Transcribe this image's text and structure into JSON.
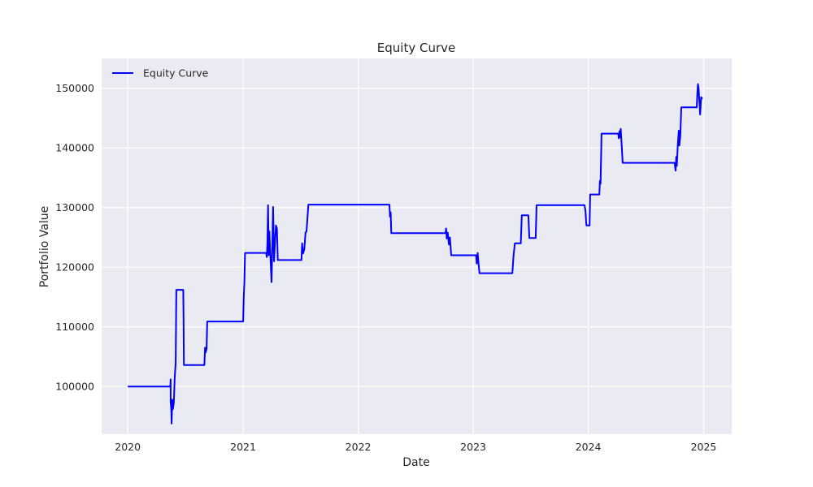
{
  "chart_data": {
    "type": "line",
    "title": "Equity Curve",
    "xlabel": "Date",
    "ylabel": "Portfolio Value",
    "x_type": "date",
    "xlim": [
      "2019-10-10",
      "2025-03-31"
    ],
    "ylim": [
      92000,
      155000
    ],
    "x_ticks": [
      "2020",
      "2021",
      "2022",
      "2023",
      "2024",
      "2025"
    ],
    "y_ticks": [
      100000,
      110000,
      120000,
      130000,
      140000,
      150000
    ],
    "y_tick_labels": [
      "100000",
      "110000",
      "120000",
      "130000",
      "140000",
      "150000"
    ],
    "grid": true,
    "background": "#EAEAF2",
    "legend_position": "top-left",
    "series": [
      {
        "name": "Equity Curve",
        "color": "#0000FF",
        "points": [
          [
            "2020-01-01",
            100000
          ],
          [
            "2020-05-15",
            100000
          ],
          [
            "2020-05-16",
            101200
          ],
          [
            "2020-05-16",
            97500
          ],
          [
            "2020-05-18",
            96000
          ],
          [
            "2020-05-19",
            93800
          ],
          [
            "2020-05-21",
            97800
          ],
          [
            "2020-05-23",
            96200
          ],
          [
            "2020-05-26",
            97200
          ],
          [
            "2020-05-29",
            101500
          ],
          [
            "2020-06-01",
            104000
          ],
          [
            "2020-06-03",
            116200
          ],
          [
            "2020-06-25",
            116200
          ],
          [
            "2020-06-26",
            111000
          ],
          [
            "2020-06-27",
            103600
          ],
          [
            "2020-08-31",
            103600
          ],
          [
            "2020-09-02",
            106500
          ],
          [
            "2020-09-04",
            105700
          ],
          [
            "2020-09-07",
            106300
          ],
          [
            "2020-09-09",
            110900
          ],
          [
            "2021-01-01",
            110900
          ],
          [
            "2021-01-03",
            115000
          ],
          [
            "2021-01-05",
            117500
          ],
          [
            "2021-01-07",
            122400
          ],
          [
            "2021-03-15",
            122400
          ],
          [
            "2021-03-17",
            121700
          ],
          [
            "2021-03-19",
            124000
          ],
          [
            "2021-03-21",
            130400
          ],
          [
            "2021-03-23",
            122000
          ],
          [
            "2021-03-25",
            126000
          ],
          [
            "2021-03-28",
            122500
          ],
          [
            "2021-04-01",
            117500
          ],
          [
            "2021-04-04",
            124500
          ],
          [
            "2021-04-06",
            130100
          ],
          [
            "2021-04-09",
            121000
          ],
          [
            "2021-04-12",
            124000
          ],
          [
            "2021-04-15",
            127000
          ],
          [
            "2021-04-18",
            126500
          ],
          [
            "2021-04-21",
            121200
          ],
          [
            "2021-07-05",
            121200
          ],
          [
            "2021-07-07",
            124000
          ],
          [
            "2021-07-10",
            122300
          ],
          [
            "2021-07-14",
            123000
          ],
          [
            "2021-07-18",
            125800
          ],
          [
            "2021-07-21",
            126000
          ],
          [
            "2021-07-24",
            128300
          ],
          [
            "2021-07-27",
            130500
          ],
          [
            "2022-04-10",
            130500
          ],
          [
            "2022-04-12",
            128500
          ],
          [
            "2022-04-14",
            129200
          ],
          [
            "2022-04-16",
            125700
          ],
          [
            "2022-10-05",
            125700
          ],
          [
            "2022-10-07",
            126500
          ],
          [
            "2022-10-09",
            124800
          ],
          [
            "2022-10-12",
            125800
          ],
          [
            "2022-10-16",
            123800
          ],
          [
            "2022-10-19",
            125000
          ],
          [
            "2022-10-23",
            122000
          ],
          [
            "2023-01-10",
            122000
          ],
          [
            "2023-01-12",
            120600
          ],
          [
            "2023-01-15",
            122400
          ],
          [
            "2023-01-18",
            120500
          ],
          [
            "2023-01-21",
            119000
          ],
          [
            "2023-05-05",
            119000
          ],
          [
            "2023-05-09",
            122000
          ],
          [
            "2023-05-13",
            124000
          ],
          [
            "2023-06-01",
            124000
          ],
          [
            "2023-06-04",
            128700
          ],
          [
            "2023-06-25",
            128700
          ],
          [
            "2023-06-28",
            124900
          ],
          [
            "2023-07-18",
            124900
          ],
          [
            "2023-07-21",
            130400
          ],
          [
            "2023-12-20",
            130400
          ],
          [
            "2023-12-23",
            129500
          ],
          [
            "2023-12-26",
            127000
          ],
          [
            "2024-01-05",
            127000
          ],
          [
            "2024-01-07",
            132200
          ],
          [
            "2024-02-05",
            132200
          ],
          [
            "2024-02-07",
            134500
          ],
          [
            "2024-02-09",
            134000
          ],
          [
            "2024-02-12",
            142400
          ],
          [
            "2024-04-05",
            142400
          ],
          [
            "2024-04-07",
            141600
          ],
          [
            "2024-04-09",
            142800
          ],
          [
            "2024-04-11",
            141800
          ],
          [
            "2024-04-13",
            143200
          ],
          [
            "2024-04-16",
            140400
          ],
          [
            "2024-04-19",
            137500
          ],
          [
            "2024-10-01",
            137500
          ],
          [
            "2024-10-04",
            136200
          ],
          [
            "2024-10-06",
            138500
          ],
          [
            "2024-10-08",
            137000
          ],
          [
            "2024-10-11",
            140500
          ],
          [
            "2024-10-14",
            142900
          ],
          [
            "2024-10-16",
            140400
          ],
          [
            "2024-10-19",
            142000
          ],
          [
            "2024-10-22",
            146800
          ],
          [
            "2024-12-10",
            146800
          ],
          [
            "2024-12-12",
            149000
          ],
          [
            "2024-12-14",
            150700
          ],
          [
            "2024-12-16",
            150000
          ],
          [
            "2024-12-18",
            148000
          ],
          [
            "2024-12-21",
            145600
          ],
          [
            "2024-12-24",
            148500
          ],
          [
            "2024-12-28",
            148200
          ]
        ]
      }
    ]
  }
}
